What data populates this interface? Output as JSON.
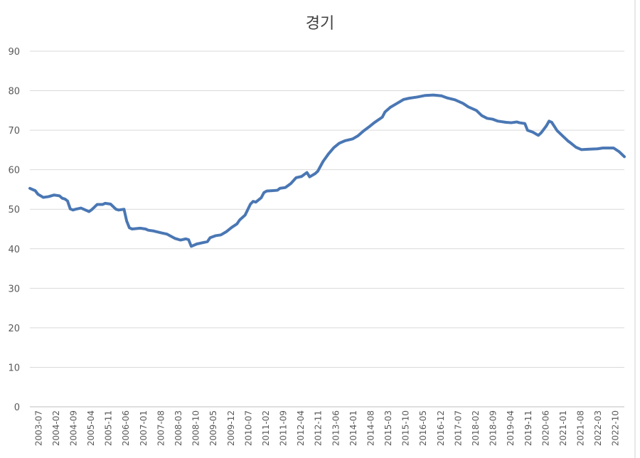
{
  "chart_data": {
    "type": "line",
    "title": "경기",
    "xlabel": "",
    "ylabel": "",
    "ylim": [
      0,
      90
    ],
    "yticks": [
      "0",
      "10",
      "20",
      "30",
      "40",
      "50",
      "60",
      "70",
      "80",
      "90"
    ],
    "grid": true,
    "legend": "none",
    "line_color": "#4a77b4",
    "x_tick_labels": [
      "2003-07",
      "2004-02",
      "2004-09",
      "2005-04",
      "2005-11",
      "2006-06",
      "2007-01",
      "2007-08",
      "2008-03",
      "2008-10",
      "2009-05",
      "2009-12",
      "2010-07",
      "2011-02",
      "2011-09",
      "2012-04",
      "2012-11",
      "2013-06",
      "2014-01",
      "2014-08",
      "2015-03",
      "2015-10",
      "2016-05",
      "2016-12",
      "2017-07",
      "2018-02",
      "2018-09",
      "2019-04",
      "2019-11",
      "2020-06",
      "2021-01",
      "2021-08",
      "2022-03",
      "2022-10"
    ],
    "series": [
      {
        "points": [
          [
            "2003-07",
            55.3
          ],
          [
            "2003-09",
            54.7
          ],
          [
            "2003-10",
            53.8
          ],
          [
            "2003-12",
            53.0
          ],
          [
            "2004-02",
            53.2
          ],
          [
            "2004-04",
            53.6
          ],
          [
            "2004-06",
            53.4
          ],
          [
            "2004-07",
            52.8
          ],
          [
            "2004-08",
            52.6
          ],
          [
            "2004-09",
            52.1
          ],
          [
            "2004-10",
            50.1
          ],
          [
            "2004-11",
            49.8
          ],
          [
            "2004-12",
            50.0
          ],
          [
            "2005-02",
            50.3
          ],
          [
            "2005-03",
            50.0
          ],
          [
            "2005-05",
            49.4
          ],
          [
            "2005-06",
            49.9
          ],
          [
            "2005-08",
            51.2
          ],
          [
            "2005-10",
            51.2
          ],
          [
            "2005-11",
            51.5
          ],
          [
            "2006-01",
            51.3
          ],
          [
            "2006-03",
            50.0
          ],
          [
            "2006-04",
            49.8
          ],
          [
            "2006-06",
            50.0
          ],
          [
            "2006-07",
            47.0
          ],
          [
            "2006-08",
            45.3
          ],
          [
            "2006-09",
            45.0
          ],
          [
            "2006-12",
            45.2
          ],
          [
            "2007-02",
            45.0
          ],
          [
            "2007-03",
            44.7
          ],
          [
            "2007-05",
            44.5
          ],
          [
            "2007-08",
            44.0
          ],
          [
            "2007-10",
            43.7
          ],
          [
            "2008-01",
            42.6
          ],
          [
            "2008-03",
            42.2
          ],
          [
            "2008-05",
            42.5
          ],
          [
            "2008-06",
            42.3
          ],
          [
            "2008-07",
            40.6
          ],
          [
            "2008-09",
            41.2
          ],
          [
            "2008-11",
            41.5
          ],
          [
            "2009-01",
            41.8
          ],
          [
            "2009-02",
            42.8
          ],
          [
            "2009-04",
            43.3
          ],
          [
            "2009-06",
            43.5
          ],
          [
            "2009-08",
            44.3
          ],
          [
            "2009-10",
            45.4
          ],
          [
            "2009-12",
            46.3
          ],
          [
            "2010-01",
            47.3
          ],
          [
            "2010-03",
            48.5
          ],
          [
            "2010-05",
            51.3
          ],
          [
            "2010-06",
            52.0
          ],
          [
            "2010-07",
            51.8
          ],
          [
            "2010-09",
            52.9
          ],
          [
            "2010-10",
            54.2
          ],
          [
            "2010-11",
            54.6
          ],
          [
            "2011-03",
            54.8
          ],
          [
            "2011-04",
            55.3
          ],
          [
            "2011-06",
            55.5
          ],
          [
            "2011-08",
            56.5
          ],
          [
            "2011-10",
            58.0
          ],
          [
            "2011-12",
            58.3
          ],
          [
            "2012-02",
            59.3
          ],
          [
            "2012-03",
            58.2
          ],
          [
            "2012-05",
            59.0
          ],
          [
            "2012-06",
            59.6
          ],
          [
            "2012-08",
            62.1
          ],
          [
            "2012-10",
            64.0
          ],
          [
            "2012-12",
            65.6
          ],
          [
            "2013-02",
            66.7
          ],
          [
            "2013-04",
            67.3
          ],
          [
            "2013-07",
            67.8
          ],
          [
            "2013-09",
            68.6
          ],
          [
            "2013-11",
            69.8
          ],
          [
            "2014-01",
            70.8
          ],
          [
            "2014-03",
            71.9
          ],
          [
            "2014-06",
            73.3
          ],
          [
            "2014-07",
            74.6
          ],
          [
            "2014-09",
            75.8
          ],
          [
            "2014-11",
            76.6
          ],
          [
            "2015-02",
            77.8
          ],
          [
            "2015-04",
            78.1
          ],
          [
            "2015-07",
            78.4
          ],
          [
            "2015-10",
            78.8
          ],
          [
            "2016-01",
            78.9
          ],
          [
            "2016-04",
            78.7
          ],
          [
            "2016-06",
            78.2
          ],
          [
            "2016-09",
            77.7
          ],
          [
            "2016-12",
            76.8
          ],
          [
            "2017-02",
            75.9
          ],
          [
            "2017-05",
            75.0
          ],
          [
            "2017-07",
            73.7
          ],
          [
            "2017-09",
            73.0
          ],
          [
            "2017-11",
            72.8
          ],
          [
            "2018-01",
            72.3
          ],
          [
            "2018-04",
            72.0
          ],
          [
            "2018-06",
            71.9
          ],
          [
            "2018-08",
            72.1
          ],
          [
            "2018-09",
            71.9
          ],
          [
            "2018-11",
            71.7
          ],
          [
            "2018-12",
            70.0
          ],
          [
            "2019-02",
            69.5
          ],
          [
            "2019-04",
            68.7
          ],
          [
            "2019-05",
            69.3
          ],
          [
            "2019-07",
            71.1
          ],
          [
            "2019-08",
            72.3
          ],
          [
            "2019-09",
            72.0
          ],
          [
            "2019-11",
            69.9
          ],
          [
            "2020-01",
            68.6
          ],
          [
            "2020-03",
            67.3
          ],
          [
            "2020-04",
            66.8
          ],
          [
            "2020-06",
            65.7
          ],
          [
            "2020-08",
            65.1
          ],
          [
            "2020-11",
            65.2
          ],
          [
            "2021-02",
            65.3
          ],
          [
            "2021-04",
            65.5
          ],
          [
            "2021-08",
            65.5
          ],
          [
            "2021-10",
            64.6
          ],
          [
            "2021-12",
            63.3
          ]
        ]
      }
    ]
  }
}
